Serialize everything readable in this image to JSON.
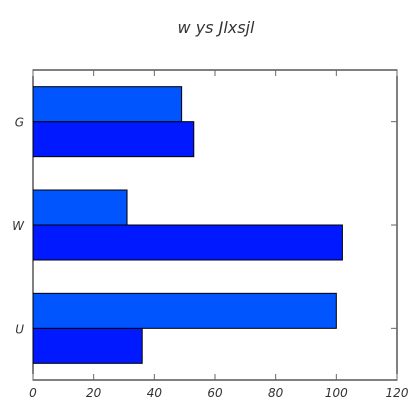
{
  "chart_data": {
    "type": "bar",
    "orientation": "horizontal",
    "title": "w ys Jlxsjl",
    "xlabel": "",
    "ylabel": "",
    "categories": [
      "U",
      "W",
      "G"
    ],
    "series": [
      {
        "values": [
          36,
          102,
          53
        ],
        "color": "#0019ff"
      },
      {
        "values": [
          100,
          31,
          49
        ],
        "color": "#0055ff"
      }
    ],
    "xlim": [
      0,
      120
    ],
    "xticks": [
      0,
      20,
      40,
      60,
      80,
      100,
      120
    ],
    "grid": false
  }
}
